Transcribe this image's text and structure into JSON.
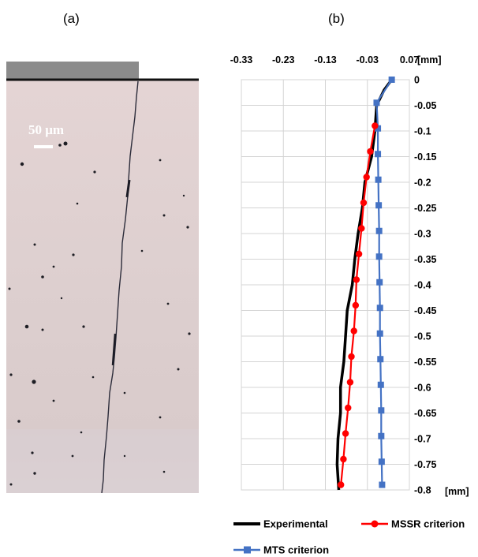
{
  "panel_labels": {
    "a": "(a)",
    "b": "(b)"
  },
  "micrograph": {
    "scale_bar_label": "50 μm"
  },
  "chart_data": {
    "type": "line",
    "x_axis": {
      "position": "top",
      "range": [
        -0.33,
        0.07
      ],
      "ticks": [
        -0.33,
        -0.23,
        -0.13,
        -0.03,
        0.07
      ],
      "tick_labels": [
        "-0.33",
        "-0.23",
        "-0.13",
        "-0.03",
        "0.07"
      ],
      "unit": "[mm]"
    },
    "y_axis": {
      "position": "right",
      "range": [
        -0.8,
        0
      ],
      "ticks": [
        0,
        -0.05,
        -0.1,
        -0.15,
        -0.2,
        -0.25,
        -0.3,
        -0.35,
        -0.4,
        -0.45,
        -0.5,
        -0.55,
        -0.6,
        -0.65,
        -0.7,
        -0.75,
        -0.8
      ],
      "tick_labels": [
        "0",
        "-0.05",
        "-0.1",
        "-0.15",
        "-0.2",
        "-0.25",
        "-0.3",
        "-0.35",
        "-0.4",
        "-0.45",
        "-0.5",
        "-0.55",
        "-0.6",
        "-0.65",
        "-0.7",
        "-0.75",
        "-0.8"
      ],
      "unit": "[mm]"
    },
    "grid": true,
    "legend_position": "bottom",
    "series": [
      {
        "name": "Experimental",
        "color": "#000000",
        "marker": "none",
        "points": [
          [
            0.028,
            0
          ],
          [
            0.01,
            -0.02
          ],
          [
            -0.008,
            -0.05
          ],
          [
            -0.012,
            -0.1
          ],
          [
            -0.02,
            -0.15
          ],
          [
            -0.036,
            -0.2
          ],
          [
            -0.042,
            -0.25
          ],
          [
            -0.052,
            -0.3
          ],
          [
            -0.06,
            -0.35
          ],
          [
            -0.066,
            -0.4
          ],
          [
            -0.078,
            -0.45
          ],
          [
            -0.082,
            -0.5
          ],
          [
            -0.086,
            -0.55
          ],
          [
            -0.094,
            -0.6
          ],
          [
            -0.094,
            -0.65
          ],
          [
            -0.1,
            -0.7
          ],
          [
            -0.102,
            -0.75
          ],
          [
            -0.098,
            -0.8
          ]
        ]
      },
      {
        "name": "MSSR criterion",
        "color": "#ff0000",
        "marker": "circle",
        "points": [
          [
            -0.012,
            -0.09
          ],
          [
            -0.023,
            -0.14
          ],
          [
            -0.032,
            -0.19
          ],
          [
            -0.039,
            -0.24
          ],
          [
            -0.044,
            -0.29
          ],
          [
            -0.05,
            -0.34
          ],
          [
            -0.056,
            -0.39
          ],
          [
            -0.058,
            -0.44
          ],
          [
            -0.062,
            -0.49
          ],
          [
            -0.068,
            -0.54
          ],
          [
            -0.071,
            -0.59
          ],
          [
            -0.076,
            -0.64
          ],
          [
            -0.082,
            -0.69
          ],
          [
            -0.087,
            -0.74
          ],
          [
            -0.093,
            -0.79
          ]
        ]
      },
      {
        "name": "MTS criterion",
        "color": "#4472c4",
        "marker": "square",
        "points": [
          [
            0.028,
            0
          ],
          [
            -0.008,
            -0.045
          ],
          [
            -0.005,
            -0.095
          ],
          [
            -0.005,
            -0.145
          ],
          [
            -0.004,
            -0.195
          ],
          [
            -0.003,
            -0.245
          ],
          [
            -0.002,
            -0.295
          ],
          [
            -0.002,
            -0.345
          ],
          [
            -0.001,
            -0.395
          ],
          [
            0.0,
            -0.445
          ],
          [
            0.0,
            -0.495
          ],
          [
            0.001,
            -0.545
          ],
          [
            0.002,
            -0.595
          ],
          [
            0.003,
            -0.645
          ],
          [
            0.003,
            -0.695
          ],
          [
            0.004,
            -0.745
          ],
          [
            0.005,
            -0.79
          ]
        ]
      }
    ]
  }
}
